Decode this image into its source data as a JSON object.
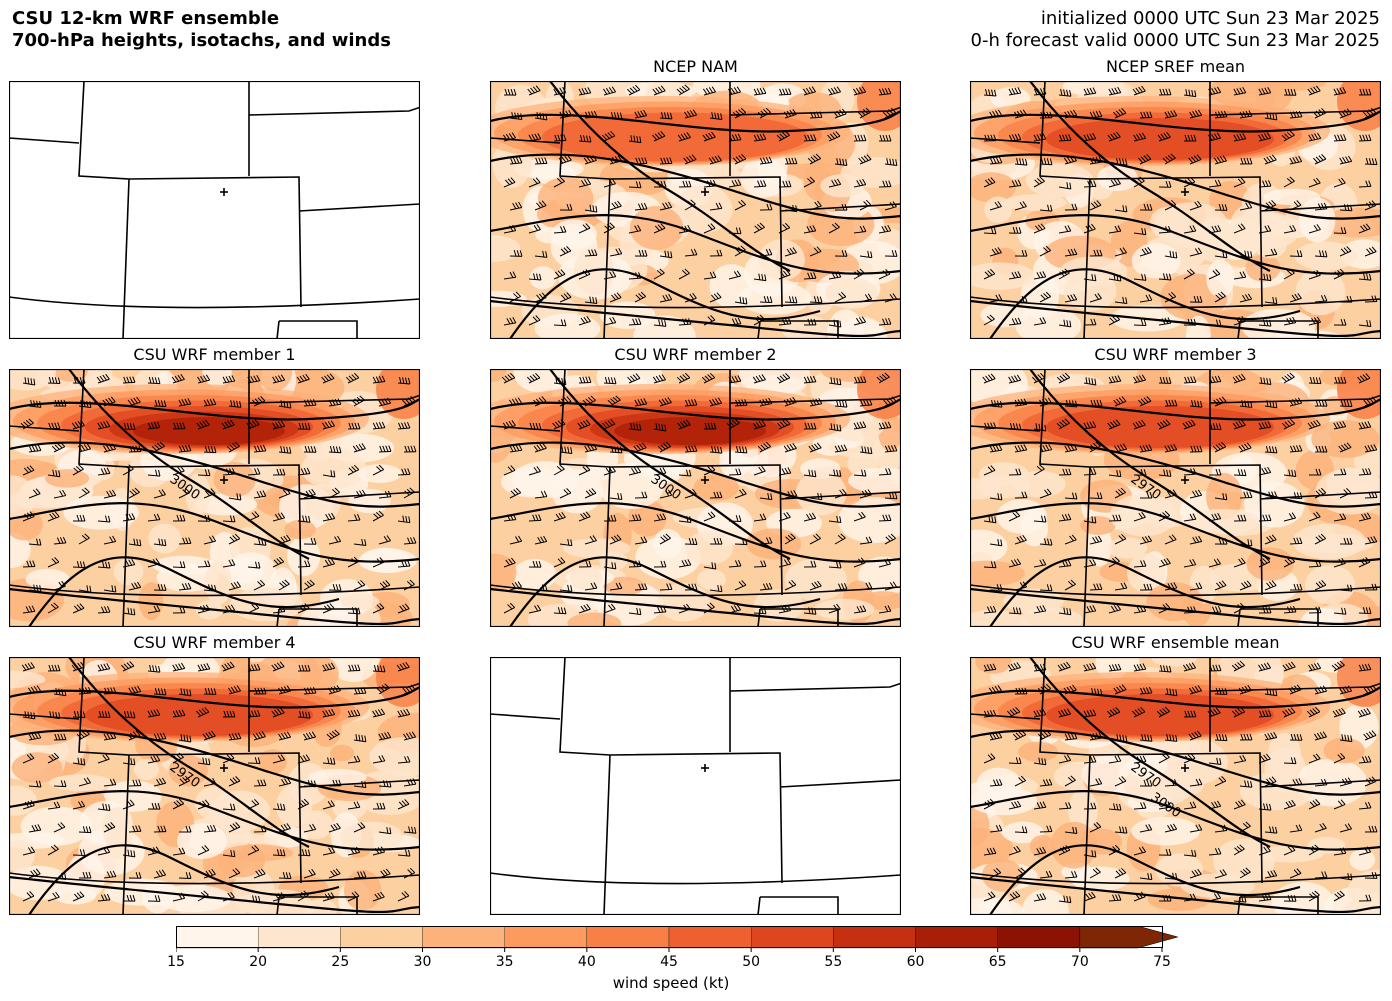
{
  "header": {
    "title_line1": "CSU 12-km WRF ensemble",
    "title_line2": "700-hPa heights, isotachs, and winds",
    "init_line": "initialized 0000 UTC Sun 23 Mar 2025",
    "valid_line": "0-h forecast valid 0000 UTC Sun 23 Mar 2025"
  },
  "panels": [
    {
      "title": "",
      "filled": false,
      "contour_labels": [],
      "jet_strength": 0
    },
    {
      "title": "NCEP NAM",
      "filled": true,
      "contour_labels": [],
      "jet_strength": 0.55
    },
    {
      "title": "NCEP SREF mean",
      "filled": true,
      "contour_labels": [],
      "jet_strength": 0.65
    },
    {
      "title": "CSU WRF member 1",
      "filled": true,
      "contour_labels": [
        "3000"
      ],
      "jet_strength": 0.85
    },
    {
      "title": "CSU WRF member 2",
      "filled": true,
      "contour_labels": [
        "3000"
      ],
      "jet_strength": 0.85
    },
    {
      "title": "CSU WRF member 3",
      "filled": true,
      "contour_labels": [
        "2970"
      ],
      "jet_strength": 0.6
    },
    {
      "title": "CSU WRF member 4",
      "filled": true,
      "contour_labels": [
        "2970"
      ],
      "jet_strength": 0.6
    },
    {
      "title": "",
      "filled": false,
      "contour_labels": [],
      "jet_strength": 0
    },
    {
      "title": "CSU WRF ensemble mean",
      "filled": true,
      "contour_labels": [
        "2970",
        "3000"
      ],
      "jet_strength": 0.65
    }
  ],
  "colorbar": {
    "label": "wind speed (kt)",
    "ticks": [
      "15",
      "20",
      "25",
      "30",
      "35",
      "40",
      "45",
      "50",
      "55",
      "60",
      "65",
      "70",
      "75"
    ],
    "colors": [
      "#fff5eb",
      "#fee6ce",
      "#fdd0a2",
      "#fdb27b",
      "#fd9a5e",
      "#f87f45",
      "#ee6030",
      "#de4620",
      "#c53010",
      "#a81e06",
      "#8c1203",
      "#7f2704"
    ]
  },
  "icons": {
    "marker": "plus-marker-icon"
  }
}
